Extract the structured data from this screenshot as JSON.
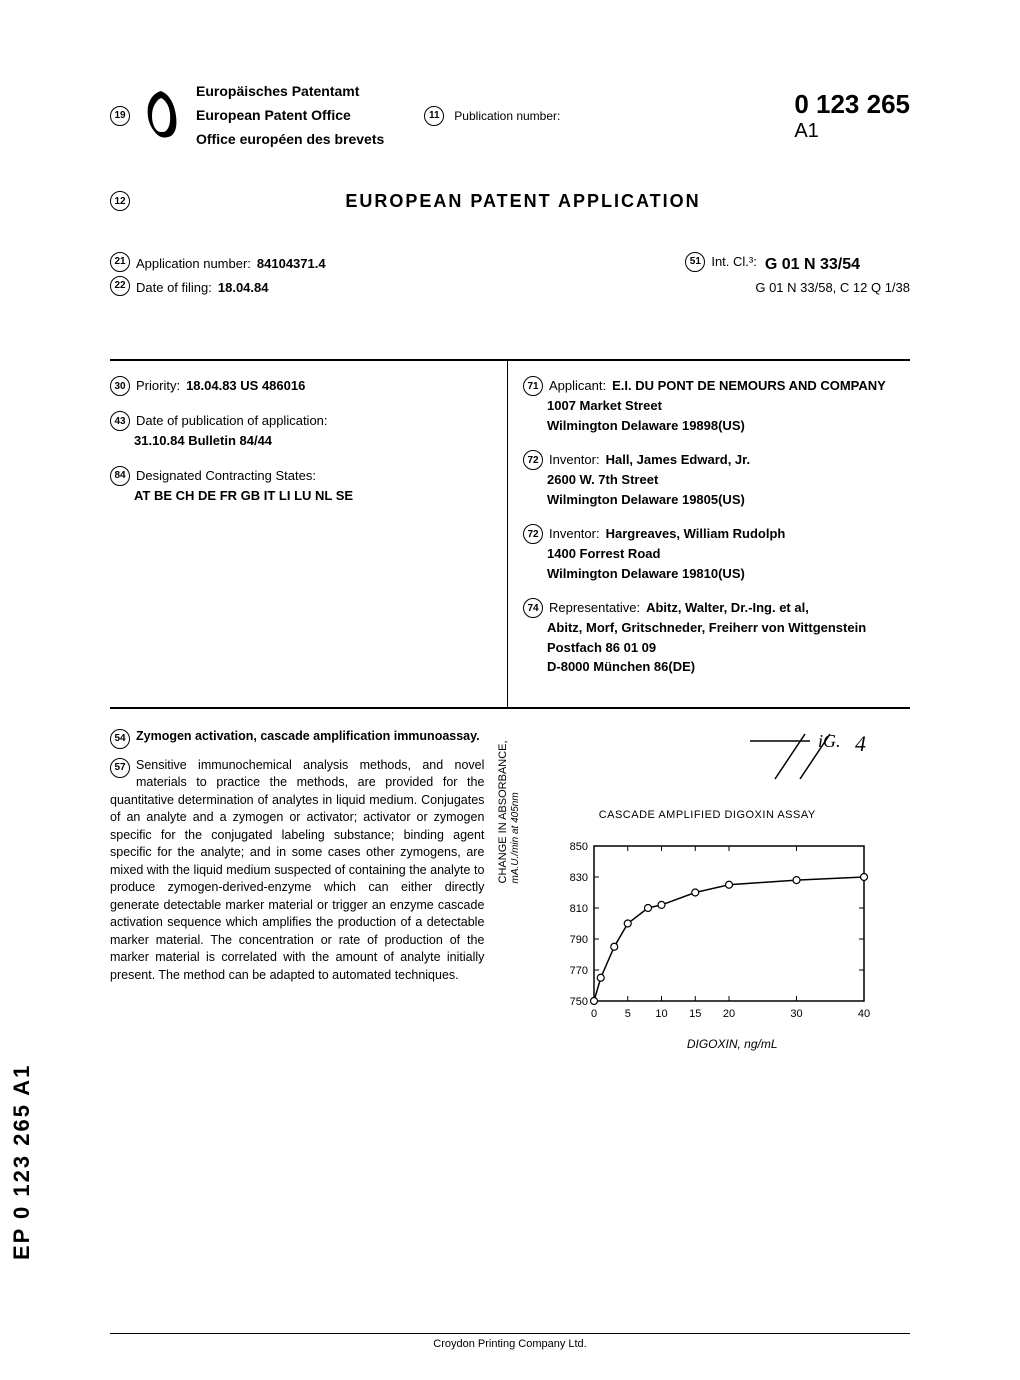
{
  "header": {
    "office_de": "Europäisches Patentamt",
    "office_en": "European Patent Office",
    "office_fr": "Office européen des brevets",
    "pub_label": "Publication number:",
    "pub_number": "0  123  265",
    "pub_suffix": "A1",
    "num_19": "19",
    "num_11": "11",
    "num_12": "12"
  },
  "title": "EUROPEAN  PATENT  APPLICATION",
  "application": {
    "num_21": "21",
    "app_number_label": "Application number:",
    "app_number": "84104371.4",
    "num_22": "22",
    "filing_label": "Date of filing:",
    "filing_date": "18.04.84",
    "num_51": "51",
    "int_cl_label": "Int. Cl.³:",
    "int_cl_main": "G  01  N  33/54",
    "int_cl_sub": "G  01  N  33/58,  C  12  Q  1/38"
  },
  "bib": {
    "num_30": "30",
    "priority_label": "Priority:",
    "priority": "18.04.83  US  486016",
    "num_43": "43",
    "pubdate_label": "Date of publication of application:",
    "pubdate": "31.10.84  Bulletin  84/44",
    "num_84": "84",
    "states_label": "Designated Contracting States:",
    "states": "AT BE CH DE FR GB IT LI LU NL SE",
    "num_71": "71",
    "applicant_label": "Applicant:",
    "applicant_name": "E.I. DU PONT DE NEMOURS AND COMPANY",
    "applicant_addr1": "1007 Market Street",
    "applicant_addr2": "Wilmington Delaware 19898(US)",
    "num_72a": "72",
    "inventor1_label": "Inventor:",
    "inventor1_name": "Hall, James Edward, Jr.",
    "inventor1_addr1": "2600 W. 7th Street",
    "inventor1_addr2": "Wilmington Delaware 19805(US)",
    "num_72b": "72",
    "inventor2_label": "Inventor:",
    "inventor2_name": "Hargreaves, William Rudolph",
    "inventor2_addr1": "1400 Forrest Road",
    "inventor2_addr2": "Wilmington Delaware 19810(US)",
    "num_74": "74",
    "rep_label": "Representative:",
    "rep_name": "Abitz, Walter, Dr.-Ing.  et  al,",
    "rep_addr1": "Abitz, Morf, Gritschneder, Freiherr von Wittgenstein",
    "rep_addr2": "Postfach 86 01 09",
    "rep_addr3": "D-8000 München 86(DE)"
  },
  "abstract": {
    "num_54": "54",
    "title": "Zymogen activation, cascade amplification immunoassay.",
    "num_57": "57",
    "text": "Sensitive immunochemical analysis methods, and novel materials to practice the methods, are provided for the quantitative determination of analytes in liquid medium. Conjugates of an analyte and a zymogen or activator; activator or zymogen specific for the conjugated labeling substance; binding agent specific for the analyte; and in some cases other zymogens, are mixed with the liquid medium suspected of containing the analyte to produce zymogen-derived-enzyme which can either directly generate detectable marker material or trigger an enzyme cascade activation sequence which amplifies the production of a detectable marker material. The concentration or rate of production of the marker material is correlated with the amount of analyte initially present. The method can be adapted to automated techniques."
  },
  "figure": {
    "fig_num": "Fig. 4",
    "chart_title": "CASCADE AMPLIFIED DIGOXIN ASSAY",
    "ylabel": "CHANGE IN ABSORBANCE,",
    "ylabel_sub": "mA.U./min at 405nm",
    "xlabel": "DIGOXIN,  ng/mL",
    "yticks": [
      "750",
      "770",
      "790",
      "810",
      "830",
      "850"
    ],
    "xticks": [
      "0",
      "5",
      "10",
      "15",
      "20",
      "30",
      "40"
    ],
    "ylim": [
      750,
      850
    ],
    "xlim": [
      0,
      40
    ],
    "data_points": [
      {
        "x": 0,
        "y": 750
      },
      {
        "x": 1,
        "y": 765
      },
      {
        "x": 3,
        "y": 785
      },
      {
        "x": 5,
        "y": 800
      },
      {
        "x": 8,
        "y": 810
      },
      {
        "x": 10,
        "y": 812
      },
      {
        "x": 15,
        "y": 820
      },
      {
        "x": 20,
        "y": 825
      },
      {
        "x": 30,
        "y": 828
      },
      {
        "x": 40,
        "y": 830
      }
    ],
    "curve_color": "#000000",
    "marker_color": "#ffffff",
    "marker_stroke": "#000000",
    "background": "#ffffff"
  },
  "side_label": "EP  0  123  265  A1",
  "footer": "Croydon Printing Company Ltd."
}
